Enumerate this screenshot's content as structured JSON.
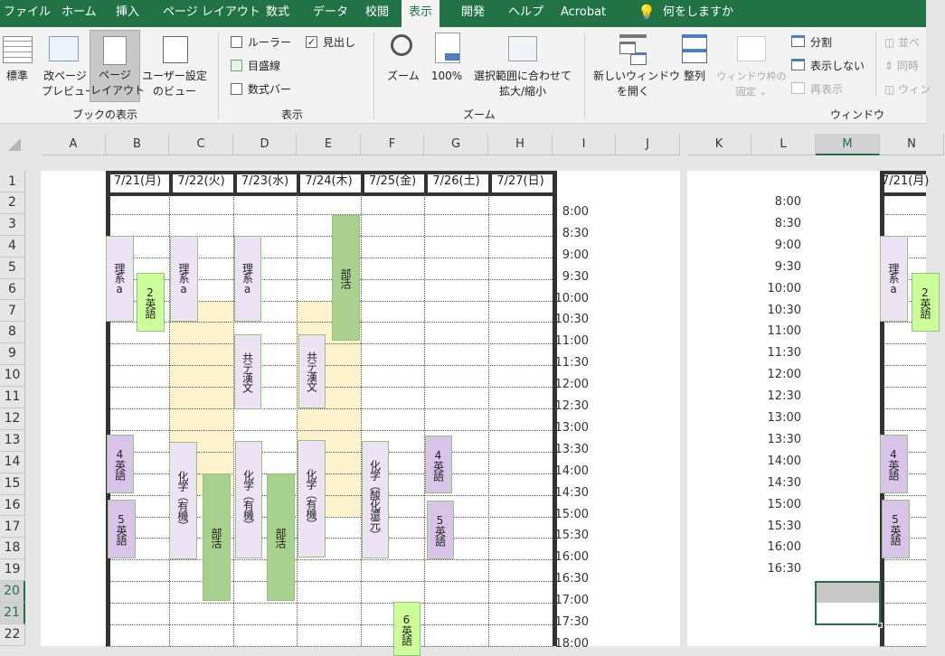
{
  "tabs": [
    "ファイル",
    "ホーム",
    "挿入",
    "ページ レイアウト",
    "数式",
    "データ",
    "校閲",
    "表示",
    "開発",
    "ヘルプ",
    "Acrobat"
  ],
  "active_tab": "表示",
  "tell_me": "何をしますか",
  "ribbon": {
    "book_views": {
      "group": "ブックの表示",
      "normal": "標準",
      "page_break": [
        "改ページ",
        "プレビュー"
      ],
      "page_layout": [
        "ページ",
        "レイアウト"
      ],
      "custom": [
        "ユーザー設定",
        "のビュー"
      ]
    },
    "show": {
      "group": "表示",
      "ruler": "ルーラー",
      "gridlines": "目盛線",
      "formula_bar": "数式バー",
      "headings": "見出し",
      "ruler_checked": false,
      "gridlines_checked": false,
      "formula_bar_checked": false,
      "headings_checked": true
    },
    "zoom": {
      "group": "ズーム",
      "zoom": "ズーム",
      "hundred": "100%",
      "fit": [
        "選択範囲に合わせて",
        "拡大/縮小"
      ]
    },
    "window": {
      "group": "ウィンドウ",
      "new_window": [
        "新しいウィンドウ",
        "を開く"
      ],
      "arrange": "整列",
      "freeze": [
        "ウィンドウ枠の",
        "固定 ⌄"
      ],
      "split": "分割",
      "hide": "表示しない",
      "unhide": "再表示",
      "side_by_side": "並べ",
      "sync": "同時",
      "reset": "ウィン"
    }
  },
  "columns": [
    "A",
    "B",
    "C",
    "D",
    "E",
    "F",
    "G",
    "H",
    "I",
    "J",
    "K",
    "L",
    "M",
    "N"
  ],
  "selected_column": "M",
  "rows": [
    "1",
    "2",
    "3",
    "4",
    "5",
    "6",
    "7",
    "8",
    "9",
    "10",
    "11",
    "12",
    "13",
    "14",
    "15",
    "16",
    "17",
    "18",
    "19",
    "20",
    "21",
    "22"
  ],
  "selected_rows": [
    "20",
    "21"
  ],
  "dates": [
    "7/21(月)",
    "7/22(火)",
    "7/23(水)",
    "7/24(木)",
    "7/25(金)",
    "7/26(土)",
    "7/27(日)"
  ],
  "page2_date": "7/21(月)",
  "times": [
    "8:00",
    "8:30",
    "9:00",
    "9:30",
    "10:00",
    "10:30",
    "11:00",
    "11:30",
    "12:00",
    "12:30",
    "13:00",
    "13:30",
    "14:00",
    "14:30",
    "15:00",
    "15:30",
    "16:00",
    "16:30",
    "17:00",
    "17:30",
    "18:00"
  ],
  "page2_times": [
    "8:00",
    "8:30",
    "9:00",
    "9:30",
    "10:00",
    "10:30",
    "11:00",
    "11:30",
    "12:00",
    "12:30",
    "13:00",
    "13:30",
    "14:00",
    "14:30",
    "15:00",
    "15:30",
    "16:00",
    "16:30"
  ],
  "colors": {
    "lavender": "#ede3f5",
    "purple": "#d9c3e9",
    "lime": "#ccff99",
    "green": "#a9d18e",
    "yellow": "#fff2cc",
    "ribbon_green": "#217346"
  },
  "shapes": [
    {
      "label": "理系a",
      "color": "lavender"
    },
    {
      "label": "2英語",
      "color": "lime"
    },
    {
      "label": "理系a",
      "color": "lavender"
    },
    {
      "label": "理系a",
      "color": "lavender"
    },
    {
      "label": "部活",
      "color": "green"
    },
    {
      "label": "共テ漢文",
      "color": "lavender"
    },
    {
      "label": "共テ漢文",
      "color": "lavender"
    },
    {
      "label": "4英語",
      "color": "purple"
    },
    {
      "label": "5英語",
      "color": "purple"
    },
    {
      "label": "化学（有機）",
      "color": "lavender"
    },
    {
      "label": "化学（有機）",
      "color": "lavender"
    },
    {
      "label": "化学（有機）",
      "color": "lavender"
    },
    {
      "label": "部活",
      "color": "green"
    },
    {
      "label": "部活",
      "color": "green"
    },
    {
      "label": "化学（酸化還元）",
      "color": "lavender"
    },
    {
      "label": "4英語",
      "color": "purple"
    },
    {
      "label": "5英語",
      "color": "purple"
    },
    {
      "label": "6英語",
      "color": "lime"
    },
    {
      "label": "理系a",
      "color": "lavender"
    },
    {
      "label": "2英語",
      "color": "lime"
    },
    {
      "label": "4英語",
      "color": "purple"
    },
    {
      "label": "5英語",
      "color": "purple"
    }
  ]
}
